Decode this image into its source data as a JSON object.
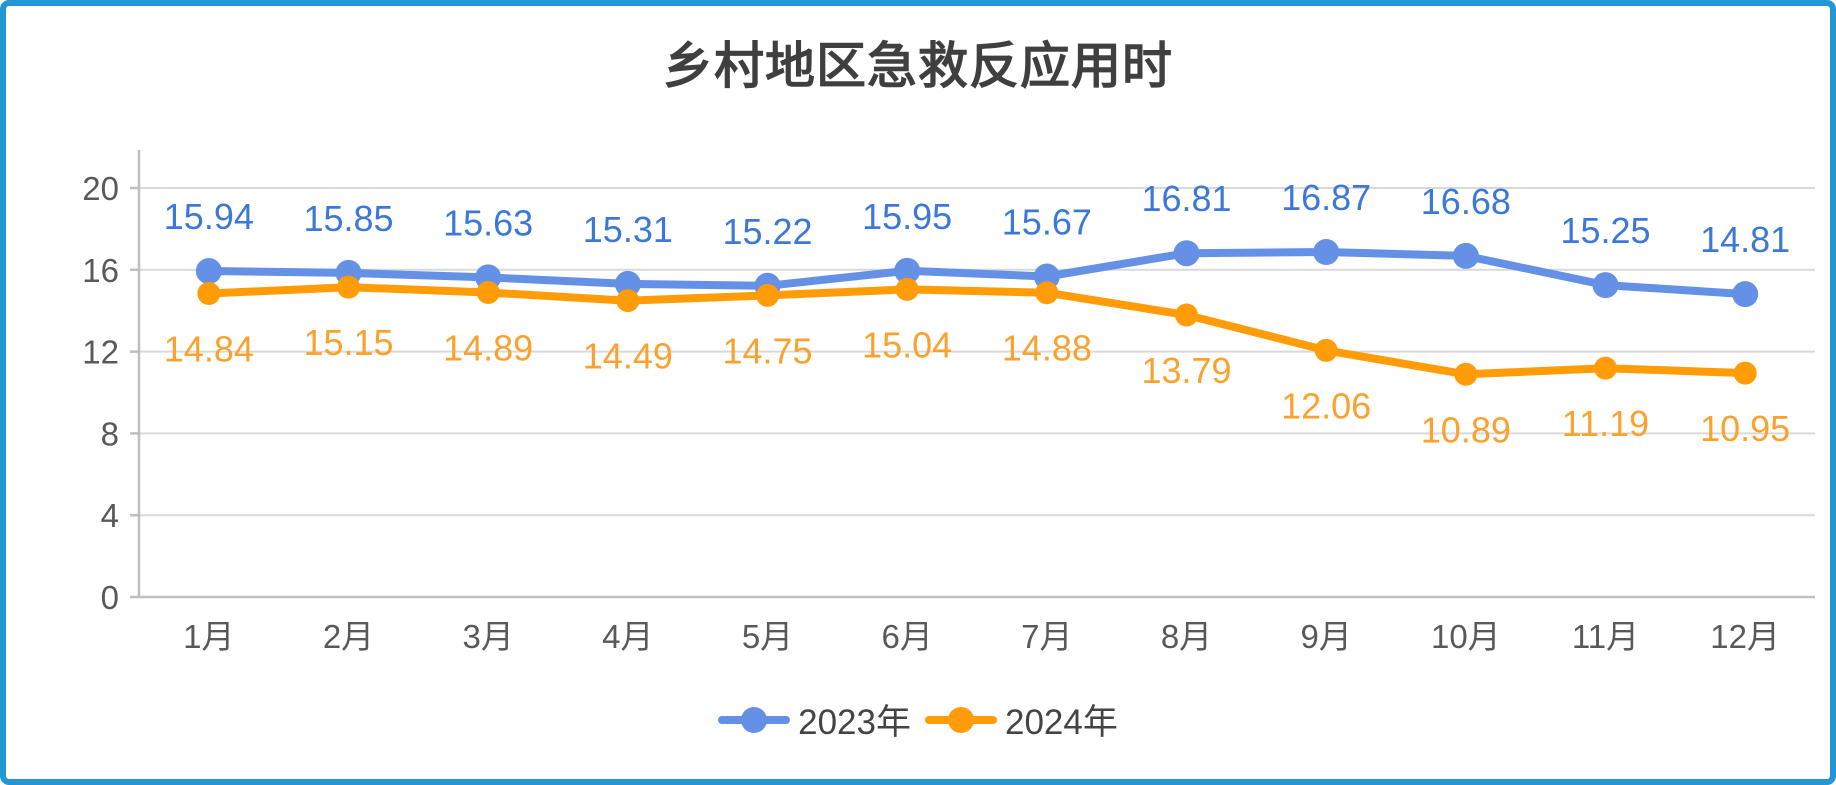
{
  "title": "乡村地区急救反应用时",
  "chart_data": {
    "type": "line",
    "title": "乡村地区急救反应用时",
    "categories": [
      "1月",
      "2月",
      "3月",
      "4月",
      "5月",
      "6月",
      "7月",
      "8月",
      "9月",
      "10月",
      "11月",
      "12月"
    ],
    "series": [
      {
        "name": "2023年",
        "values": [
          15.94,
          15.85,
          15.63,
          15.31,
          15.22,
          15.95,
          15.67,
          16.81,
          16.87,
          16.68,
          15.25,
          14.81
        ],
        "line_color": "#6491e6",
        "label_color": "#3c78d8",
        "marker_radius": 13,
        "label_side": "above"
      },
      {
        "name": "2024年",
        "values": [
          14.84,
          15.15,
          14.89,
          14.49,
          14.75,
          15.04,
          14.88,
          13.79,
          12.06,
          10.89,
          11.19,
          10.95
        ],
        "line_color": "#ff9c08",
        "label_color": "#faa22d",
        "marker_radius": 11.5,
        "label_side": "below"
      }
    ],
    "xlabel": "",
    "ylabel": "",
    "ylim": [
      0,
      20
    ],
    "yticks": [
      0,
      4,
      8,
      12,
      16,
      20
    ],
    "grid": true,
    "data_labels": true,
    "legend_position": "bottom"
  },
  "style": {
    "grid_color": "#d9d9d9",
    "axis_color": "#bfbfbf",
    "tick_label_color": "#595959",
    "title_color": "#3f3f3f",
    "legend_text_color": "#444444",
    "frame_color": "#2496d4"
  }
}
